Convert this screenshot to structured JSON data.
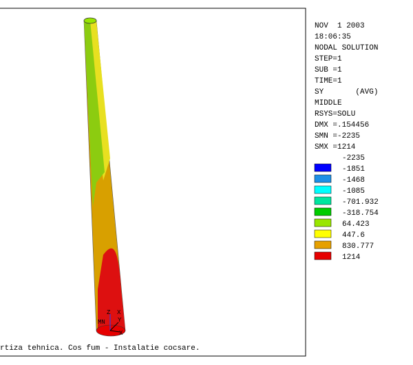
{
  "info": {
    "lines": [
      "NOV  1 2003",
      "18:06:35",
      "NODAL SOLUTION",
      "STEP=1",
      "SUB =1",
      "TIME=1",
      "SY       (AVG)",
      "MIDDLE",
      "RSYS=SOLU",
      "DMX =.154456",
      "SMN =-2235",
      "SMX =1214"
    ]
  },
  "legend": {
    "labels": [
      "-2235",
      "-1851",
      "-1468",
      "-1085",
      "-701.932",
      "-318.754",
      "64.423",
      "447.6",
      "830.777",
      "1214"
    ],
    "colors": [
      "#0000ff",
      "#1e90e6",
      "#00ffff",
      "#00e6a0",
      "#00cc00",
      "#99e600",
      "#ffff00",
      "#e6a000",
      "#e60000"
    ]
  },
  "triad": {
    "labels": [
      "MN",
      "Z",
      "X",
      "Y",
      "X"
    ]
  },
  "caption": "rtiza tehnica. Cos fum - Instalatie cocsare."
}
